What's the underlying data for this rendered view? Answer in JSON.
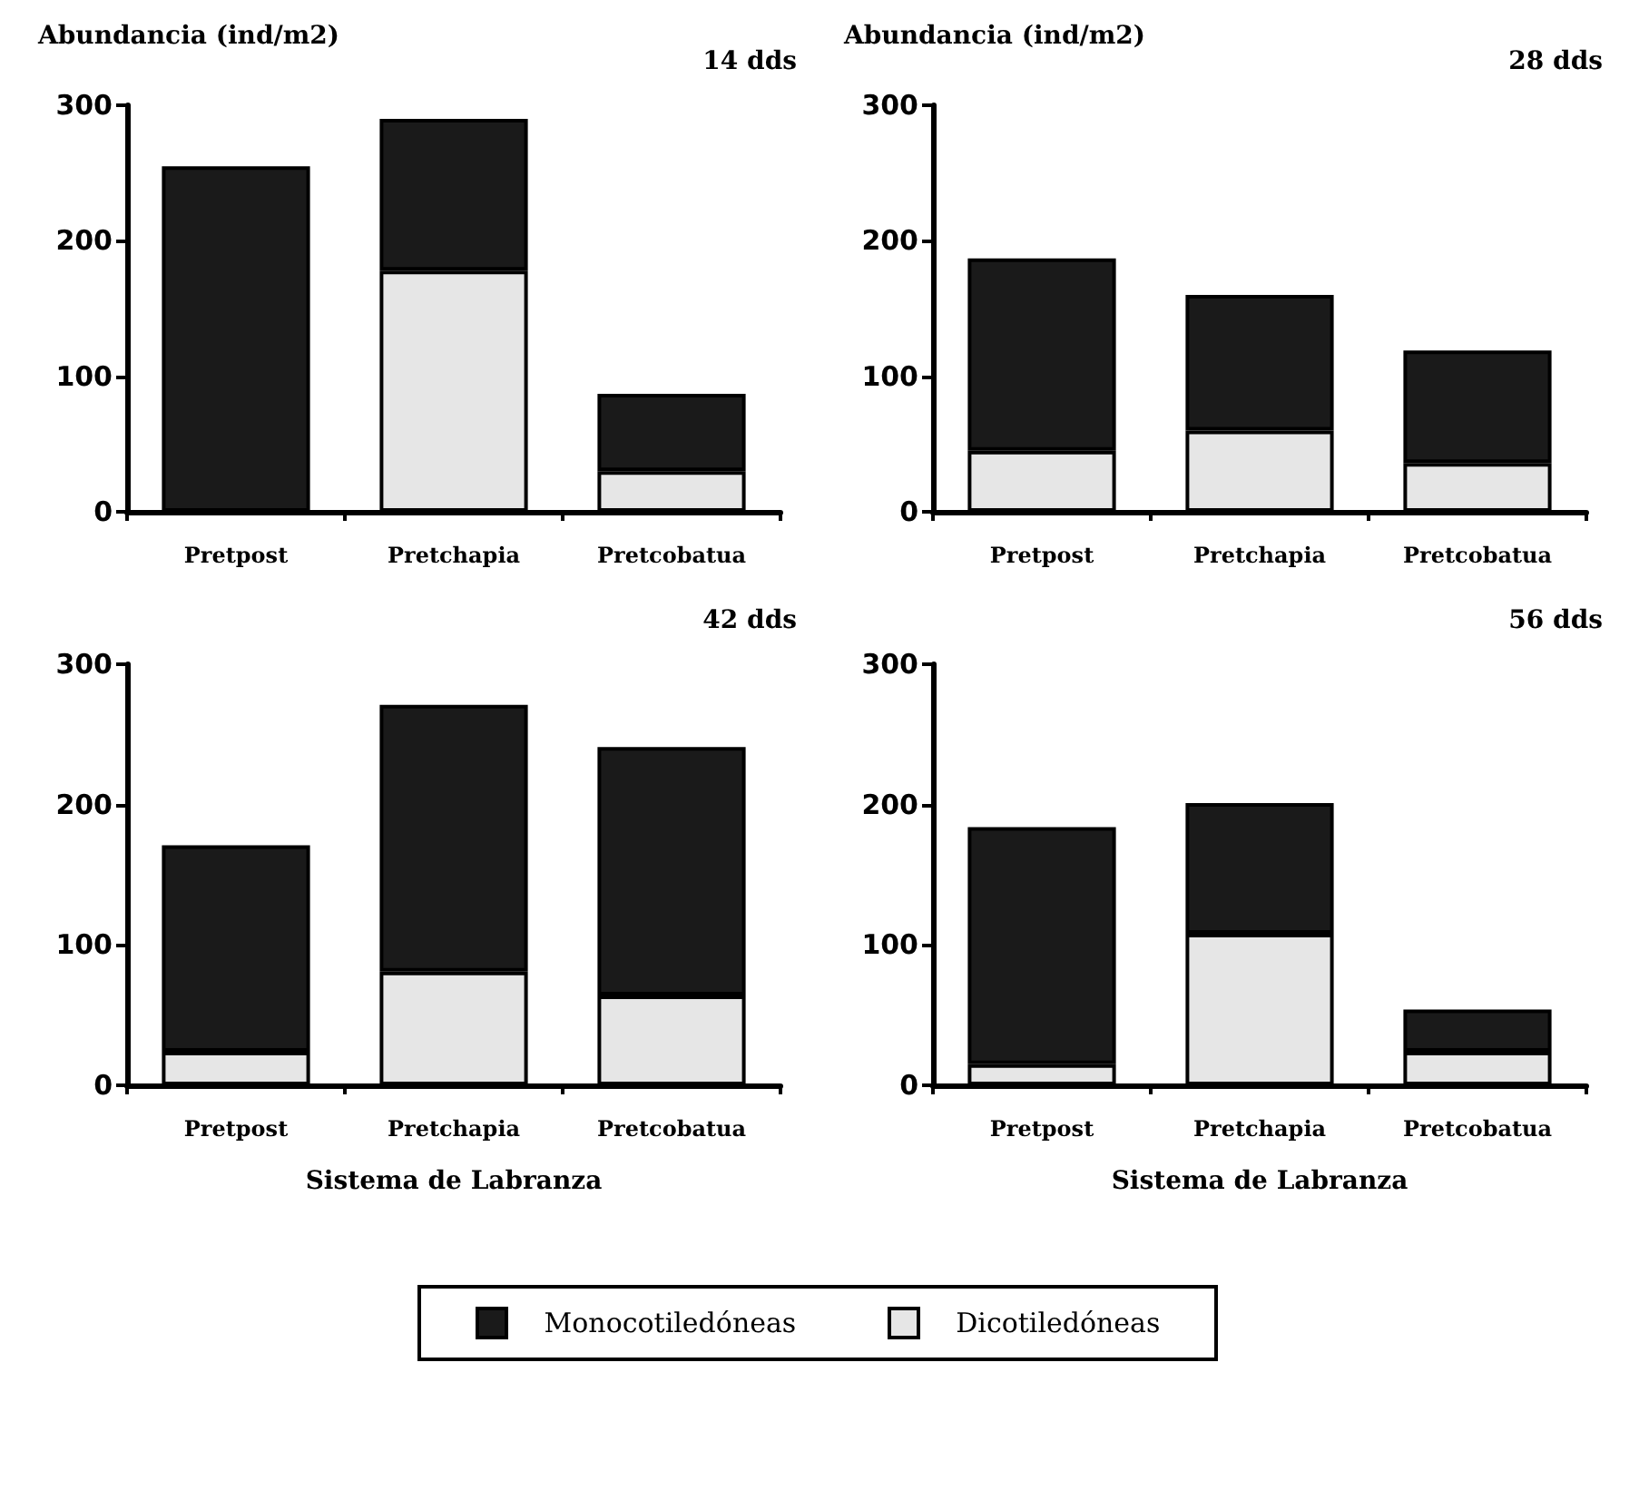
{
  "chart_data": [
    {
      "type": "bar",
      "stacked": true,
      "title": "14 dds",
      "ylabel": "Abundancia (ind/m2)",
      "categories": [
        "Pretpost",
        "Pretchapia",
        "Pretcobatua"
      ],
      "ylim": [
        0,
        300
      ],
      "yticks": [
        0,
        100,
        200,
        300
      ],
      "grid": false,
      "legend": "bottom",
      "series": [
        {
          "name": "Dicotiledóneas",
          "color": "#e6e6e6",
          "values": [
            0,
            178,
            30
          ]
        },
        {
          "name": "Monocotiledóneas",
          "color": "#1a1a1a",
          "values": [
            255,
            112,
            57
          ]
        }
      ]
    },
    {
      "type": "bar",
      "stacked": true,
      "title": "28 dds",
      "ylabel": "Abundancia (ind/m2)",
      "categories": [
        "Pretpost",
        "Pretchapia",
        "Pretcobatua"
      ],
      "ylim": [
        0,
        300
      ],
      "yticks": [
        0,
        100,
        200,
        300
      ],
      "grid": false,
      "series": [
        {
          "color": "#e6e6e6",
          "values": [
            45,
            60,
            36
          ]
        },
        {
          "color": "#1a1a1a",
          "values": [
            142,
            100,
            83
          ]
        }
      ]
    },
    {
      "type": "bar",
      "stacked": true,
      "title": "42 dds",
      "xlabel": "Sistema de Labranza",
      "categories": [
        "Pretpost",
        "Pretchapia",
        "Pretcobatua"
      ],
      "ylim": [
        0,
        300
      ],
      "yticks": [
        0,
        100,
        200,
        300
      ],
      "grid": false,
      "series": [
        {
          "color": "#e6e6e6",
          "values": [
            24,
            81,
            64
          ]
        },
        {
          "color": "#1a1a1a",
          "values": [
            147,
            190,
            177
          ]
        }
      ]
    },
    {
      "type": "bar",
      "stacked": true,
      "title": "56 dds",
      "xlabel": "Sistema de Labranza",
      "categories": [
        "Pretpost",
        "Pretchapia",
        "Pretcobatua"
      ],
      "ylim": [
        0,
        300
      ],
      "yticks": [
        0,
        100,
        200,
        300
      ],
      "grid": false,
      "series": [
        {
          "color": "#e6e6e6",
          "values": [
            15,
            108,
            24
          ]
        },
        {
          "color": "#1a1a1a",
          "values": [
            169,
            93,
            30
          ]
        }
      ]
    }
  ]
}
